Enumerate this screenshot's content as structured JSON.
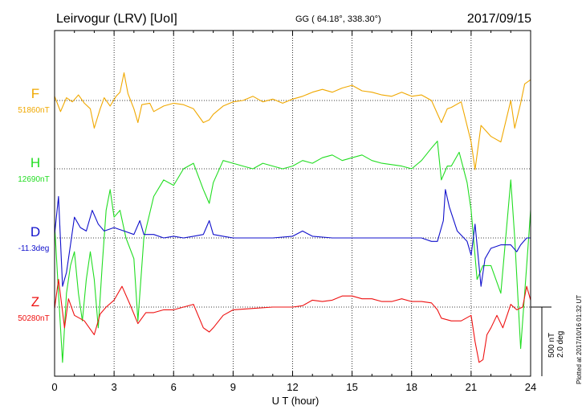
{
  "header": {
    "station": "Leirvogur (LRV)  [UoI]",
    "coords": "GG ( 64.18°, 338.30°)",
    "date": "2017/09/15"
  },
  "scale": {
    "nt": "500 nT",
    "deg": "2.0 deg"
  },
  "plotted": "Plotted at 2017/10/16 01:32 UT",
  "chart_data": {
    "type": "line",
    "xlabel": "U T (hour)",
    "xlim": [
      0,
      24
    ],
    "x_ticks": [
      "0",
      "3",
      "6",
      "9",
      "12",
      "15",
      "18",
      "21",
      "24"
    ],
    "grid": true,
    "units_per_scale_bar": {
      "nT": 500,
      "deg": 2.0
    },
    "series": [
      {
        "name": "F",
        "baseline_label": "51860nT",
        "color": "#f0a800",
        "points": [
          [
            0,
            30
          ],
          [
            0.3,
            -80
          ],
          [
            0.6,
            20
          ],
          [
            0.9,
            -10
          ],
          [
            1.2,
            40
          ],
          [
            1.5,
            -20
          ],
          [
            1.8,
            -60
          ],
          [
            2.0,
            -200
          ],
          [
            2.3,
            -60
          ],
          [
            2.5,
            20
          ],
          [
            2.8,
            -40
          ],
          [
            3.1,
            30
          ],
          [
            3.3,
            60
          ],
          [
            3.5,
            200
          ],
          [
            3.7,
            50
          ],
          [
            4.0,
            -60
          ],
          [
            4.2,
            -160
          ],
          [
            4.4,
            -30
          ],
          [
            4.8,
            -20
          ],
          [
            5.0,
            -80
          ],
          [
            5.5,
            -40
          ],
          [
            6.0,
            -20
          ],
          [
            6.5,
            -30
          ],
          [
            7.0,
            -60
          ],
          [
            7.5,
            -160
          ],
          [
            7.8,
            -140
          ],
          [
            8.0,
            -100
          ],
          [
            8.5,
            -40
          ],
          [
            9.0,
            -10
          ],
          [
            9.5,
            0
          ],
          [
            10.0,
            30
          ],
          [
            10.5,
            -10
          ],
          [
            11.0,
            10
          ],
          [
            11.5,
            -20
          ],
          [
            12.0,
            10
          ],
          [
            12.5,
            30
          ],
          [
            13.0,
            60
          ],
          [
            13.5,
            80
          ],
          [
            14.0,
            60
          ],
          [
            14.5,
            90
          ],
          [
            15.0,
            110
          ],
          [
            15.5,
            70
          ],
          [
            16.0,
            60
          ],
          [
            16.5,
            40
          ],
          [
            17.0,
            30
          ],
          [
            17.5,
            60
          ],
          [
            18.0,
            30
          ],
          [
            18.5,
            40
          ],
          [
            19.0,
            0
          ],
          [
            19.5,
            -160
          ],
          [
            19.8,
            -60
          ],
          [
            20.0,
            -50
          ],
          [
            20.5,
            -10
          ],
          [
            21.0,
            -300
          ],
          [
            21.2,
            -500
          ],
          [
            21.5,
            -180
          ],
          [
            22.0,
            -260
          ],
          [
            22.5,
            -300
          ],
          [
            23.0,
            0
          ],
          [
            23.2,
            -200
          ],
          [
            23.5,
            -20
          ],
          [
            23.7,
            120
          ],
          [
            24.0,
            150
          ]
        ]
      },
      {
        "name": "H",
        "baseline_label": "12690nT",
        "color": "#22dd22",
        "points": [
          [
            0,
            -400
          ],
          [
            0.2,
            -900
          ],
          [
            0.4,
            -1400
          ],
          [
            0.6,
            -900
          ],
          [
            0.8,
            -700
          ],
          [
            1.0,
            -600
          ],
          [
            1.2,
            -900
          ],
          [
            1.4,
            -1100
          ],
          [
            1.6,
            -800
          ],
          [
            1.8,
            -600
          ],
          [
            2.0,
            -800
          ],
          [
            2.2,
            -1150
          ],
          [
            2.4,
            -700
          ],
          [
            2.6,
            -300
          ],
          [
            2.8,
            -150
          ],
          [
            3.0,
            -350
          ],
          [
            3.3,
            -300
          ],
          [
            3.6,
            -500
          ],
          [
            4.0,
            -650
          ],
          [
            4.2,
            -1100
          ],
          [
            4.5,
            -500
          ],
          [
            5.0,
            -200
          ],
          [
            5.5,
            -80
          ],
          [
            6.0,
            -120
          ],
          [
            6.5,
            0
          ],
          [
            7.0,
            40
          ],
          [
            7.5,
            -150
          ],
          [
            7.8,
            -250
          ],
          [
            8.0,
            -100
          ],
          [
            8.5,
            60
          ],
          [
            9.0,
            40
          ],
          [
            9.5,
            20
          ],
          [
            10.0,
            0
          ],
          [
            10.5,
            40
          ],
          [
            11.0,
            20
          ],
          [
            11.5,
            0
          ],
          [
            12.0,
            20
          ],
          [
            12.5,
            60
          ],
          [
            13.0,
            40
          ],
          [
            13.5,
            80
          ],
          [
            14.0,
            100
          ],
          [
            14.5,
            60
          ],
          [
            15.0,
            80
          ],
          [
            15.5,
            100
          ],
          [
            16.0,
            60
          ],
          [
            16.5,
            40
          ],
          [
            17.0,
            30
          ],
          [
            17.5,
            20
          ],
          [
            18.0,
            0
          ],
          [
            18.5,
            60
          ],
          [
            19.0,
            150
          ],
          [
            19.3,
            200
          ],
          [
            19.5,
            -80
          ],
          [
            19.8,
            20
          ],
          [
            20.0,
            20
          ],
          [
            20.4,
            120
          ],
          [
            20.8,
            -100
          ],
          [
            21.0,
            -300
          ],
          [
            21.3,
            -800
          ],
          [
            21.6,
            -700
          ],
          [
            22.0,
            -700
          ],
          [
            22.5,
            -900
          ],
          [
            23.0,
            -80
          ],
          [
            23.2,
            -500
          ],
          [
            23.5,
            -1300
          ],
          [
            23.8,
            -700
          ],
          [
            24.0,
            -300
          ]
        ]
      },
      {
        "name": "D",
        "baseline_label": "-11.3deg",
        "color": "#1010cc",
        "points": [
          [
            0,
            0.1
          ],
          [
            0.2,
            1.2
          ],
          [
            0.4,
            -1.4
          ],
          [
            0.6,
            -1.0
          ],
          [
            0.8,
            -0.2
          ],
          [
            1.0,
            0.6
          ],
          [
            1.3,
            0.3
          ],
          [
            1.6,
            0.2
          ],
          [
            1.9,
            0.8
          ],
          [
            2.2,
            0.4
          ],
          [
            2.5,
            0.2
          ],
          [
            3.0,
            0.3
          ],
          [
            3.5,
            0.2
          ],
          [
            4.0,
            0.1
          ],
          [
            4.3,
            0.5
          ],
          [
            4.5,
            0.1
          ],
          [
            5.0,
            0.1
          ],
          [
            5.5,
            0.0
          ],
          [
            6.0,
            0.05
          ],
          [
            6.5,
            0.0
          ],
          [
            7.0,
            0.05
          ],
          [
            7.5,
            0.1
          ],
          [
            7.8,
            0.5
          ],
          [
            8.0,
            0.1
          ],
          [
            8.5,
            0.05
          ],
          [
            9.0,
            0.0
          ],
          [
            10.0,
            0.0
          ],
          [
            11.0,
            0.0
          ],
          [
            12.0,
            0.05
          ],
          [
            12.5,
            0.2
          ],
          [
            13.0,
            0.05
          ],
          [
            14.0,
            0.0
          ],
          [
            15.0,
            0.0
          ],
          [
            16.0,
            0.0
          ],
          [
            17.0,
            0.0
          ],
          [
            18.0,
            0.0
          ],
          [
            18.5,
            0.0
          ],
          [
            19.0,
            -0.1
          ],
          [
            19.3,
            -0.1
          ],
          [
            19.6,
            0.5
          ],
          [
            19.7,
            1.4
          ],
          [
            19.9,
            0.9
          ],
          [
            20.3,
            0.2
          ],
          [
            20.8,
            -0.1
          ],
          [
            21.0,
            -0.5
          ],
          [
            21.2,
            0.4
          ],
          [
            21.5,
            -1.4
          ],
          [
            21.7,
            -0.6
          ],
          [
            22.0,
            -0.3
          ],
          [
            22.5,
            -0.2
          ],
          [
            23.0,
            -0.2
          ],
          [
            23.3,
            -0.4
          ],
          [
            23.5,
            -0.2
          ],
          [
            23.8,
            0.0
          ],
          [
            24.0,
            0.0
          ]
        ]
      },
      {
        "name": "Z",
        "baseline_label": "50280nT",
        "color": "#ee1111",
        "points": [
          [
            0,
            -10
          ],
          [
            0.2,
            200
          ],
          [
            0.5,
            -150
          ],
          [
            0.7,
            60
          ],
          [
            1.0,
            -60
          ],
          [
            1.5,
            -100
          ],
          [
            2.0,
            -200
          ],
          [
            2.3,
            -50
          ],
          [
            2.6,
            0
          ],
          [
            3.0,
            50
          ],
          [
            3.4,
            150
          ],
          [
            3.8,
            20
          ],
          [
            4.2,
            -120
          ],
          [
            4.6,
            -40
          ],
          [
            5.0,
            -40
          ],
          [
            5.5,
            -20
          ],
          [
            6.0,
            -20
          ],
          [
            6.5,
            0
          ],
          [
            7.0,
            20
          ],
          [
            7.5,
            -150
          ],
          [
            7.8,
            -180
          ],
          [
            8.0,
            -150
          ],
          [
            8.5,
            -60
          ],
          [
            9.0,
            -20
          ],
          [
            10.0,
            -10
          ],
          [
            11.0,
            0
          ],
          [
            12.0,
            0
          ],
          [
            12.5,
            10
          ],
          [
            13.0,
            50
          ],
          [
            13.5,
            40
          ],
          [
            14.0,
            50
          ],
          [
            14.5,
            80
          ],
          [
            15.0,
            80
          ],
          [
            15.5,
            60
          ],
          [
            16.0,
            60
          ],
          [
            16.5,
            40
          ],
          [
            17.0,
            40
          ],
          [
            17.5,
            60
          ],
          [
            18.0,
            40
          ],
          [
            18.5,
            40
          ],
          [
            19.0,
            30
          ],
          [
            19.3,
            -20
          ],
          [
            19.5,
            -80
          ],
          [
            20.0,
            -100
          ],
          [
            20.5,
            -100
          ],
          [
            21.0,
            -60
          ],
          [
            21.2,
            -250
          ],
          [
            21.4,
            -400
          ],
          [
            21.6,
            -380
          ],
          [
            21.8,
            -200
          ],
          [
            22.0,
            -150
          ],
          [
            22.3,
            -60
          ],
          [
            22.6,
            -150
          ],
          [
            23.0,
            20
          ],
          [
            23.3,
            -20
          ],
          [
            23.6,
            0
          ],
          [
            23.8,
            150
          ],
          [
            24.0,
            50
          ]
        ]
      }
    ]
  }
}
